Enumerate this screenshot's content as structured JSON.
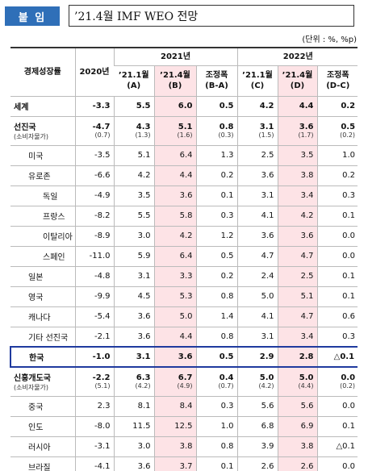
{
  "header": {
    "badge": "붙 임",
    "title": "’21.4월 IMF WEO 전망",
    "unit": "(단위 : %, %p)"
  },
  "table": {
    "category": "경제성장률",
    "base": "2020년",
    "groups": [
      {
        "name": "2021년",
        "columns": [
          {
            "line1": "’21.1월",
            "line2": "(A)",
            "highlight": false
          },
          {
            "line1": "’21.4월",
            "line2": "(B)",
            "highlight": true
          },
          {
            "line1": "조정폭",
            "line2": "(B-A)",
            "highlight": false
          }
        ]
      },
      {
        "name": "2022년",
        "columns": [
          {
            "line1": "’21.1월",
            "line2": "(C)",
            "highlight": false
          },
          {
            "line1": "’21.4월",
            "line2": "(D)",
            "highlight": true
          },
          {
            "line1": "조정폭",
            "line2": "(D-C)",
            "highlight": false
          }
        ]
      }
    ],
    "rows": [
      {
        "label": "세계",
        "level": 0,
        "bold": true,
        "values": [
          "-3.3",
          "5.5",
          "6.0",
          "0.5",
          "4.2",
          "4.4",
          "0.2"
        ]
      },
      {
        "label": "선진국",
        "note": "(소비자물가)",
        "level": 0,
        "bold": true,
        "values": [
          "-4.7",
          "4.3",
          "5.1",
          "0.8",
          "3.1",
          "3.6",
          "0.5"
        ],
        "notes": [
          "(0.7)",
          "(1.3)",
          "(1.6)",
          "(0.3)",
          "(1.5)",
          "(1.7)",
          "(0.2)"
        ]
      },
      {
        "label": "미국",
        "level": 1,
        "values": [
          "-3.5",
          "5.1",
          "6.4",
          "1.3",
          "2.5",
          "3.5",
          "1.0"
        ]
      },
      {
        "label": "유로존",
        "level": 1,
        "values": [
          "-6.6",
          "4.2",
          "4.4",
          "0.2",
          "3.6",
          "3.8",
          "0.2"
        ]
      },
      {
        "label": "독일",
        "level": 2,
        "values": [
          "-4.9",
          "3.5",
          "3.6",
          "0.1",
          "3.1",
          "3.4",
          "0.3"
        ]
      },
      {
        "label": "프랑스",
        "level": 2,
        "values": [
          "-8.2",
          "5.5",
          "5.8",
          "0.3",
          "4.1",
          "4.2",
          "0.1"
        ]
      },
      {
        "label": "이탈리아",
        "level": 2,
        "values": [
          "-8.9",
          "3.0",
          "4.2",
          "1.2",
          "3.6",
          "3.6",
          "0.0"
        ]
      },
      {
        "label": "스페인",
        "level": 2,
        "values": [
          "-11.0",
          "5.9",
          "6.4",
          "0.5",
          "4.7",
          "4.7",
          "0.0"
        ]
      },
      {
        "label": "일본",
        "level": 1,
        "values": [
          "-4.8",
          "3.1",
          "3.3",
          "0.2",
          "2.4",
          "2.5",
          "0.1"
        ]
      },
      {
        "label": "영국",
        "level": 1,
        "values": [
          "-9.9",
          "4.5",
          "5.3",
          "0.8",
          "5.0",
          "5.1",
          "0.1"
        ]
      },
      {
        "label": "캐나다",
        "level": 1,
        "values": [
          "-5.4",
          "3.6",
          "5.0",
          "1.4",
          "4.1",
          "4.7",
          "0.6"
        ]
      },
      {
        "label": "기타 선진국",
        "level": 1,
        "values": [
          "-2.1",
          "3.6",
          "4.4",
          "0.8",
          "3.1",
          "3.4",
          "0.3"
        ]
      },
      {
        "label": "한국",
        "level": 1,
        "bold": true,
        "highlight": true,
        "values": [
          "-1.0",
          "3.1",
          "3.6",
          "0.5",
          "2.9",
          "2.8",
          "△0.1"
        ]
      },
      {
        "label": "신흥개도국",
        "note": "(소비자물가)",
        "level": 0,
        "bold": true,
        "values": [
          "-2.2",
          "6.3",
          "6.7",
          "0.4",
          "5.0",
          "5.0",
          "0.0"
        ],
        "notes": [
          "(5.1)",
          "(4.2)",
          "(4.9)",
          "(0.7)",
          "(4.2)",
          "(4.4)",
          "(0.2)"
        ]
      },
      {
        "label": "중국",
        "level": 1,
        "values": [
          "2.3",
          "8.1",
          "8.4",
          "0.3",
          "5.6",
          "5.6",
          "0.0"
        ]
      },
      {
        "label": "인도",
        "level": 1,
        "values": [
          "-8.0",
          "11.5",
          "12.5",
          "1.0",
          "6.8",
          "6.9",
          "0.1"
        ]
      },
      {
        "label": "러시아",
        "level": 1,
        "values": [
          "-3.1",
          "3.0",
          "3.8",
          "0.8",
          "3.9",
          "3.8",
          "△0.1"
        ]
      },
      {
        "label": "브라질",
        "level": 1,
        "values": [
          "-4.1",
          "3.6",
          "3.7",
          "0.1",
          "2.6",
          "2.6",
          "0.0"
        ]
      }
    ]
  }
}
